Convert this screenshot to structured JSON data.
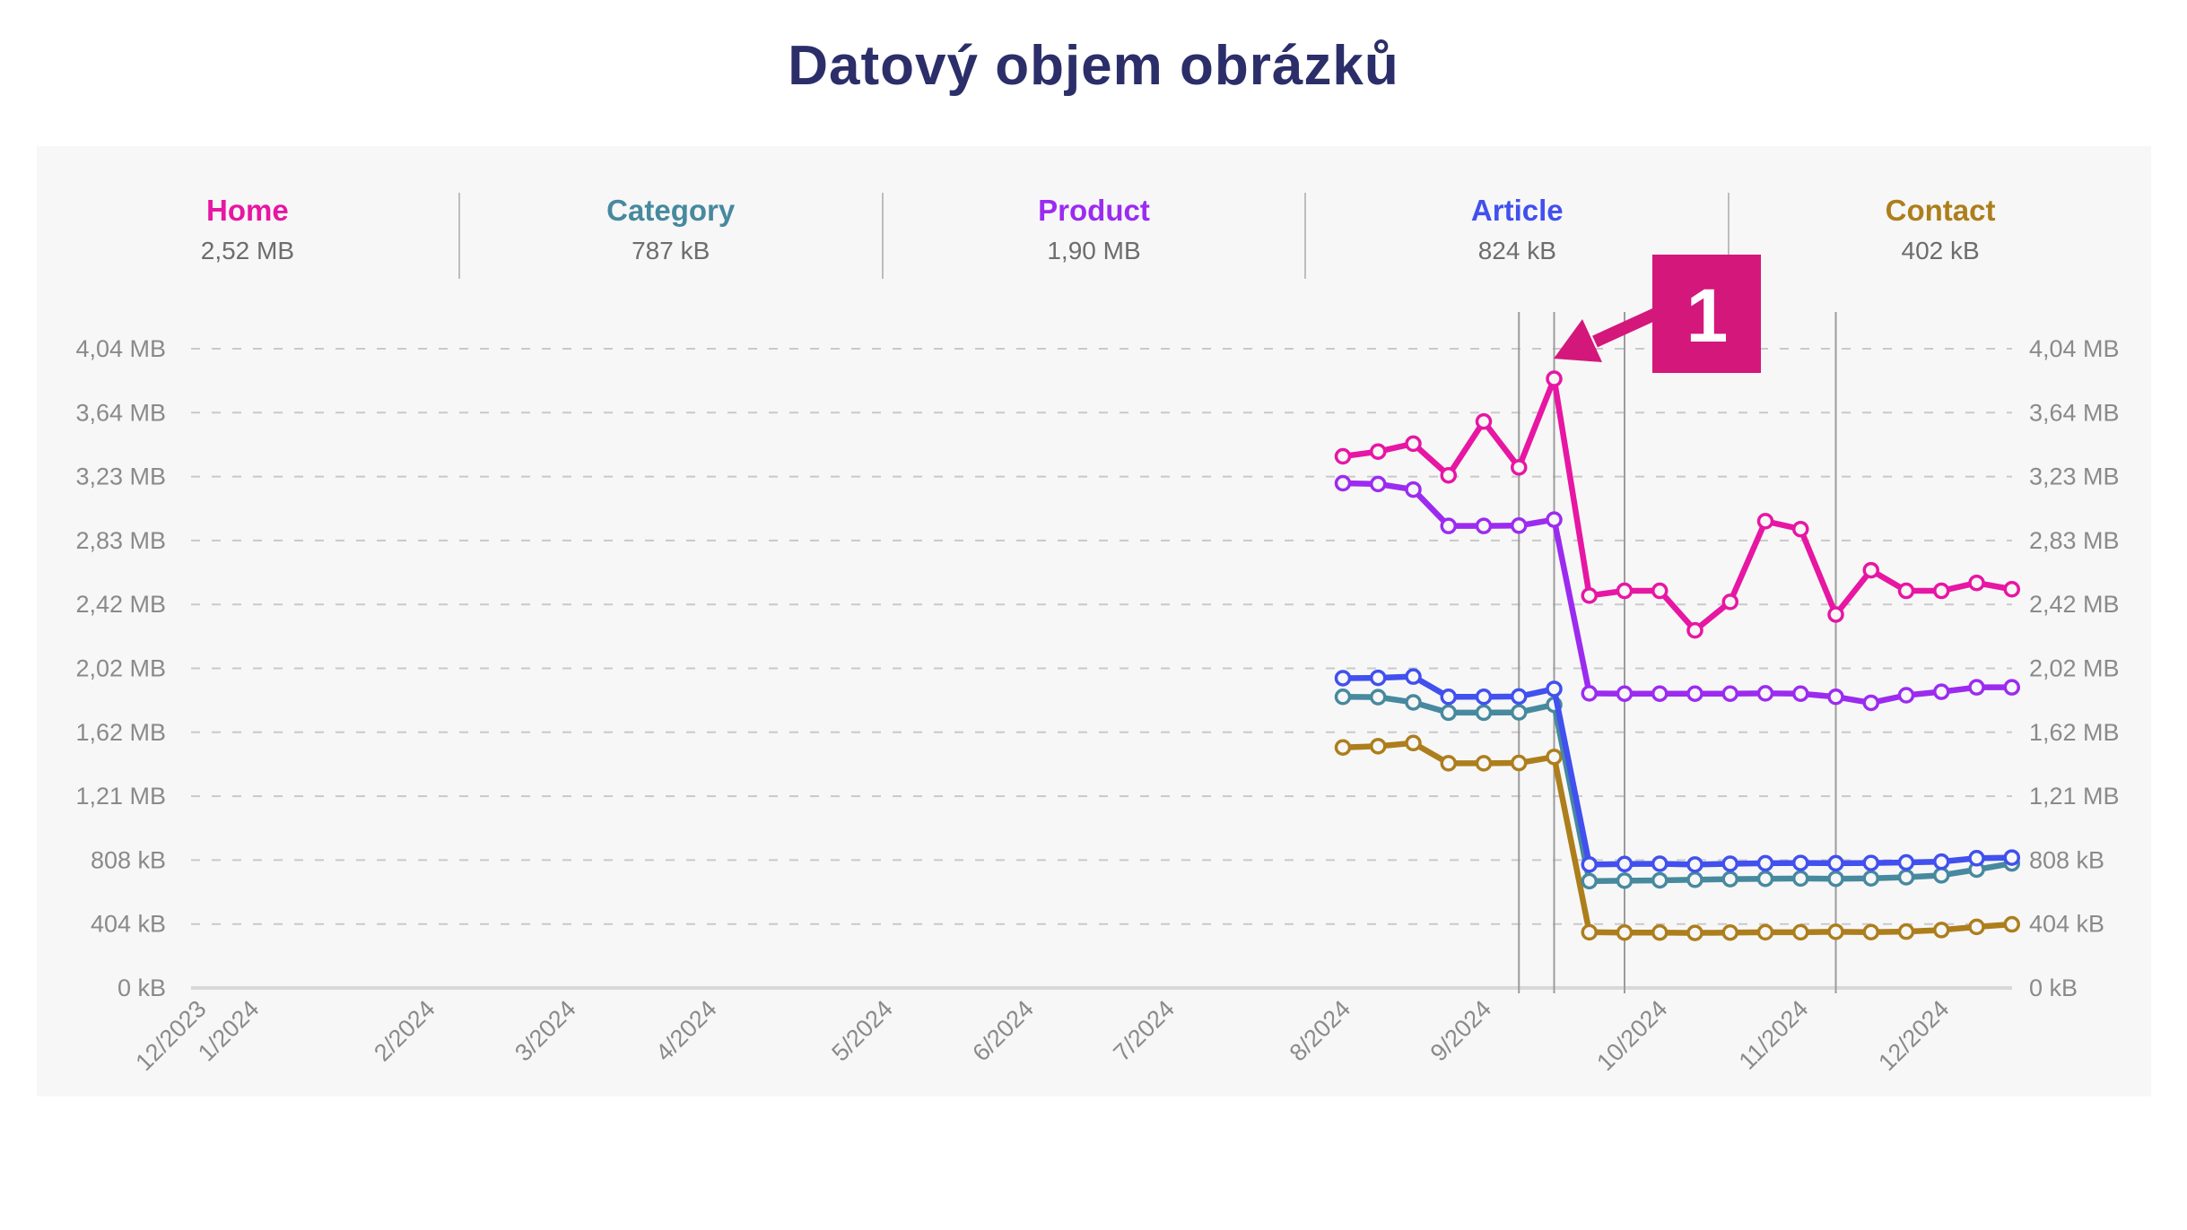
{
  "header": {
    "title": "Datový objem obrázků"
  },
  "legend": {
    "items": [
      {
        "name": "Home",
        "value": "2,52 MB",
        "color": "#e716a3"
      },
      {
        "name": "Category",
        "value": "787 kB",
        "color": "#47899e"
      },
      {
        "name": "Product",
        "value": "1,90 MB",
        "color": "#9c2bf0"
      },
      {
        "name": "Article",
        "value": "824 kB",
        "color": "#4150ee"
      },
      {
        "name": "Contact",
        "value": "402 kB",
        "color": "#ad7e1c"
      }
    ]
  },
  "chart_data": {
    "type": "line",
    "title": "Datový objem obrázků",
    "grid": "dashed-horizontal",
    "legend_position": "top",
    "y_axis": {
      "unit": "kB",
      "min": 0,
      "max": 4040,
      "ticks": [
        {
          "kb": 0,
          "label": "0 kB"
        },
        {
          "kb": 404,
          "label": "404 kB"
        },
        {
          "kb": 808,
          "label": "808 kB"
        },
        {
          "kb": 1212,
          "label": "1,21 MB"
        },
        {
          "kb": 1616,
          "label": "1,62 MB"
        },
        {
          "kb": 2020,
          "label": "2,02 MB"
        },
        {
          "kb": 2424,
          "label": "2,42 MB"
        },
        {
          "kb": 2828,
          "label": "2,83 MB"
        },
        {
          "kb": 3232,
          "label": "3,23 MB"
        },
        {
          "kb": 3636,
          "label": "3,64 MB"
        },
        {
          "kb": 4040,
          "label": "4,04 MB"
        }
      ]
    },
    "x_axis": {
      "unit": "weekly points, labeled by month",
      "ticks": [
        {
          "label": "12/2023",
          "week": -32.5
        },
        {
          "label": "1/2024",
          "week": -31
        },
        {
          "label": "2/2024",
          "week": -26
        },
        {
          "label": "3/2024",
          "week": -22
        },
        {
          "label": "4/2024",
          "week": -18
        },
        {
          "label": "5/2024",
          "week": -13
        },
        {
          "label": "6/2024",
          "week": -9
        },
        {
          "label": "7/2024",
          "week": -5
        },
        {
          "label": "8/2024",
          "week": 0
        },
        {
          "label": "9/2024",
          "week": 4
        },
        {
          "label": "10/2024",
          "week": 9
        },
        {
          "label": "11/2024",
          "week": 13
        },
        {
          "label": "12/2024",
          "week": 17
        }
      ]
    },
    "series": [
      {
        "name": "Home",
        "color": "#e716a3",
        "current": "2,52 MB",
        "values_kb": [
          3360,
          3390,
          3440,
          3240,
          3580,
          3290,
          3850,
          2480,
          2510,
          2510,
          2260,
          2440,
          2950,
          2900,
          2360,
          2640,
          2510,
          2510,
          2560,
          2520
        ]
      },
      {
        "name": "Category",
        "color": "#47899e",
        "current": "787 kB",
        "values_kb": [
          1840,
          1838,
          1805,
          1740,
          1740,
          1742,
          1790,
          675,
          678,
          680,
          684,
          688,
          690,
          692,
          690,
          693,
          700,
          712,
          748,
          787
        ]
      },
      {
        "name": "Product",
        "color": "#9c2bf0",
        "current": "1,90 MB",
        "values_kb": [
          3190,
          3185,
          3150,
          2920,
          2920,
          2922,
          2960,
          1862,
          1860,
          1860,
          1860,
          1860,
          1862,
          1860,
          1840,
          1802,
          1850,
          1872,
          1900,
          1900
        ]
      },
      {
        "name": "Article",
        "color": "#4150ee",
        "current": "824 kB",
        "values_kb": [
          1958,
          1960,
          1968,
          1840,
          1840,
          1842,
          1890,
          780,
          783,
          785,
          780,
          785,
          788,
          790,
          788,
          790,
          793,
          798,
          820,
          824
        ]
      },
      {
        "name": "Contact",
        "color": "#ad7e1c",
        "current": "402 kB",
        "values_kb": [
          1520,
          1528,
          1548,
          1420,
          1420,
          1422,
          1460,
          352,
          350,
          350,
          348,
          350,
          352,
          352,
          355,
          353,
          356,
          366,
          386,
          402
        ]
      }
    ],
    "annotations": {
      "vertical_guide_weeks": [
        5,
        6,
        8,
        14
      ],
      "step_marker": {
        "label": "1",
        "color": "#d4177b",
        "points_to_week": 6,
        "points_to_value_kb": 3850
      }
    }
  }
}
